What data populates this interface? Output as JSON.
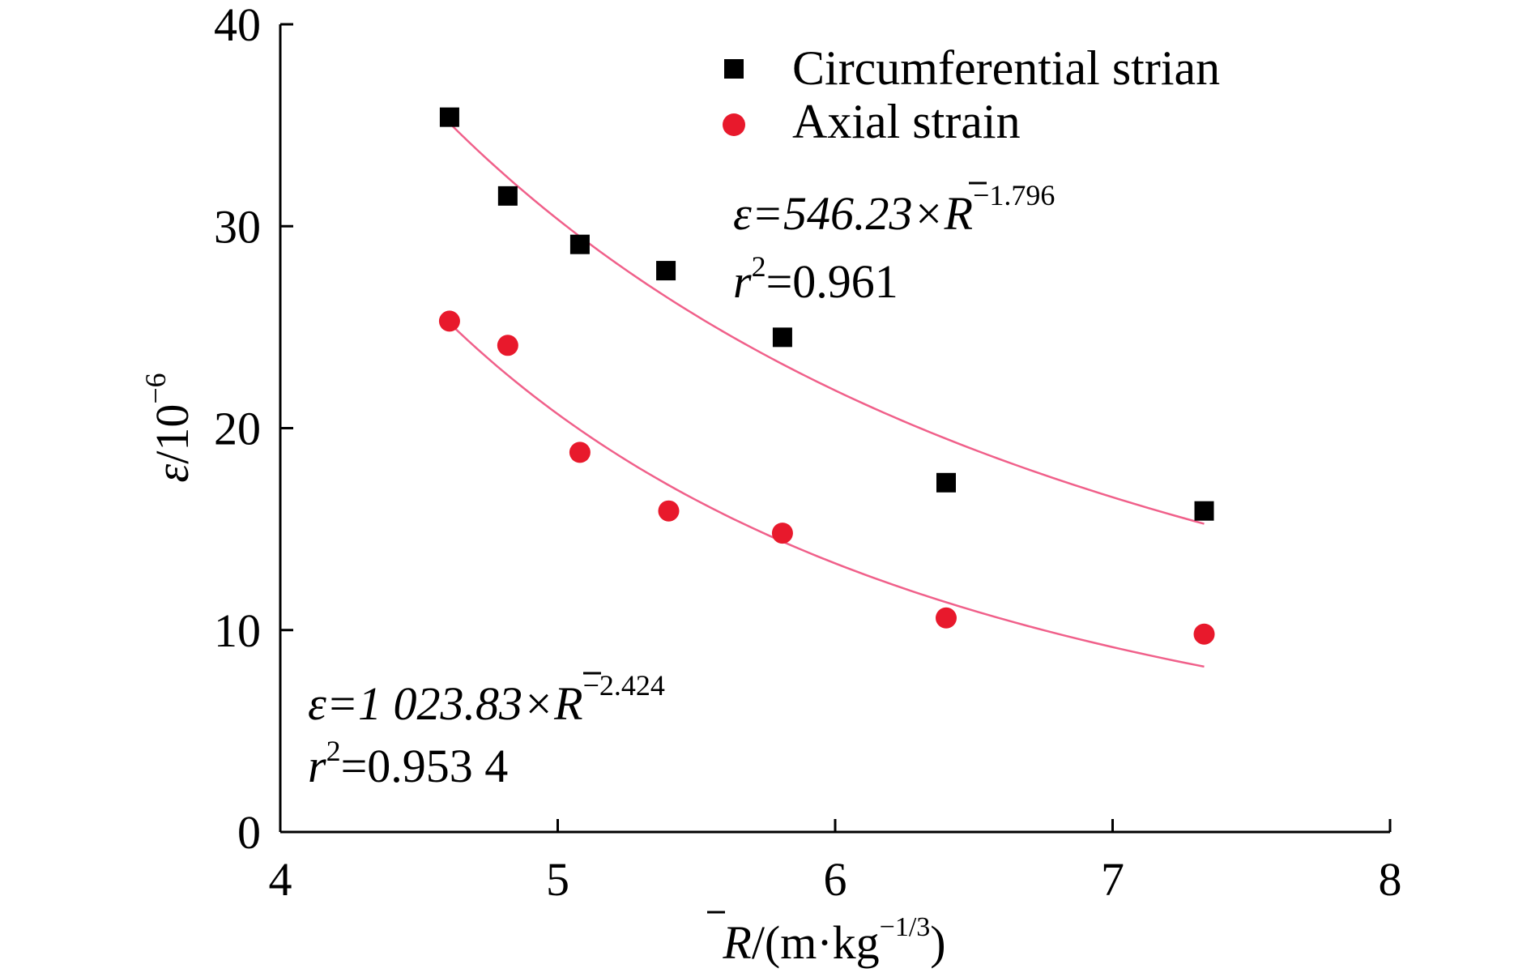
{
  "chart_data": {
    "type": "scatter",
    "xlabel_symbol": "R",
    "xlabel_unit_open": "/(m·kg",
    "xlabel_unit_exp": "−1/3",
    "xlabel_unit_close": ")",
    "ylabel_symbol": "ε",
    "ylabel_unit": "/10",
    "ylabel_exp": "−6",
    "xlim": [
      4,
      8
    ],
    "ylim": [
      0,
      40
    ],
    "x_ticks": [
      4,
      5,
      6,
      7,
      8
    ],
    "y_ticks": [
      0,
      10,
      20,
      30,
      40
    ],
    "x_tick_labels": [
      "4",
      "5",
      "6",
      "7",
      "8"
    ],
    "y_tick_labels": [
      "0",
      "10",
      "20",
      "30",
      "40"
    ],
    "grid": false,
    "legend_position": "top-right",
    "series": [
      {
        "name": "Circumferential strian",
        "marker": "square",
        "color": "#000000",
        "points": [
          {
            "x": 4.61,
            "y": 35.4
          },
          {
            "x": 4.82,
            "y": 31.5
          },
          {
            "x": 5.08,
            "y": 29.1
          },
          {
            "x": 5.39,
            "y": 27.8
          },
          {
            "x": 5.81,
            "y": 24.5
          },
          {
            "x": 6.4,
            "y": 17.3
          },
          {
            "x": 7.33,
            "y": 15.9
          }
        ],
        "fit": {
          "coefficient": 546.23,
          "exponent": -1.796,
          "x_range": [
            4.61,
            7.33
          ],
          "color": "#f0608a",
          "equation_prefix": "ε=546.23×",
          "equation_var": "R",
          "equation_exp": "−1.796",
          "r2_prefix": "r",
          "r2_sup": "2",
          "r2_value": "=0.961"
        }
      },
      {
        "name": "Axial strain",
        "marker": "circle",
        "color": "#e8192c",
        "points": [
          {
            "x": 4.61,
            "y": 25.3
          },
          {
            "x": 4.82,
            "y": 24.1
          },
          {
            "x": 5.08,
            "y": 18.8
          },
          {
            "x": 5.4,
            "y": 15.9
          },
          {
            "x": 5.81,
            "y": 14.8
          },
          {
            "x": 6.4,
            "y": 10.6
          },
          {
            "x": 7.33,
            "y": 9.8
          }
        ],
        "fit": {
          "coefficient": 1023.83,
          "exponent": -2.424,
          "x_range": [
            4.61,
            7.33
          ],
          "color": "#f0608a",
          "equation_prefix": "ε=1 023.83×",
          "equation_var": "R",
          "equation_exp": "−2.424",
          "r2_prefix": "r",
          "r2_sup": "2",
          "r2_value": "=0.953 4"
        }
      }
    ]
  }
}
